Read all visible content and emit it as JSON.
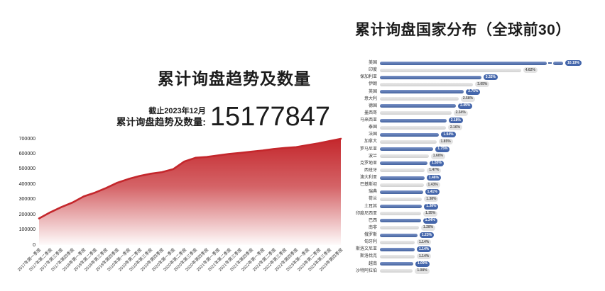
{
  "left_chart": {
    "title": "累计询盘趋势及数量",
    "as_of_label": "截止2023年12月",
    "total_label": "累计询盘趋势及数量:",
    "total_value": "15177847"
  },
  "right_chart": {
    "title": "累计询盘国家分布（全球前30）"
  },
  "colors": {
    "area_red": "#c4272c",
    "bar_blue": "#4a6bb0",
    "bar_gray": "#d9d9d9",
    "badge_blue_bg": "#4466ab",
    "badge_gray_bg": "#e3e3e3",
    "text_dark": "#1c1c1c"
  },
  "chart_data": [
    {
      "type": "area",
      "title": "累计询盘趋势及数量",
      "x": [
        "2017年第一季度",
        "2017年第二季度",
        "2017年第三季度",
        "2017年第四季度",
        "2018年第一季度",
        "2018年第二季度",
        "2018年第三季度",
        "2018年第四季度",
        "2019年第一季度",
        "2019年第二季度",
        "2019年第三季度",
        "2019年第四季度",
        "2020年第一季度",
        "2020年第二季度",
        "2020年第三季度",
        "2020年第四季度",
        "2021年第一季度",
        "2021年第二季度",
        "2021年第三季度",
        "2021年第四季度",
        "2022年第一季度",
        "2022年第二季度",
        "2022年第三季度",
        "2022年第四季度",
        "2023年第一季度",
        "2023年第二季度",
        "2023年第三季度",
        "2023年第四季度"
      ],
      "values": [
        175000,
        215000,
        250000,
        280000,
        320000,
        345000,
        375000,
        410000,
        435000,
        455000,
        470000,
        480000,
        500000,
        550000,
        575000,
        580000,
        590000,
        600000,
        607000,
        615000,
        623000,
        633000,
        640000,
        645000,
        658000,
        670000,
        685000,
        700000
      ],
      "xlabel": "",
      "ylabel": "",
      "ylim": [
        0,
        700000
      ],
      "yticks": [
        0,
        100000,
        200000,
        300000,
        400000,
        500000,
        600000,
        700000
      ],
      "grid": false,
      "legend": false
    },
    {
      "type": "bar",
      "orientation": "horizontal",
      "title": "累计询盘国家分布（全球前30）",
      "unit": "%",
      "first_bar_axis_break": true,
      "color_alternation": [
        "blue",
        "gray"
      ],
      "categories": [
        "美国",
        "印度",
        "保加利亚",
        "伊朗",
        "英国",
        "意大利",
        "德国",
        "墨西哥",
        "马来西亚",
        "泰国",
        "法国",
        "加拿大",
        "罗马尼亚",
        "波兰",
        "克罗地亚",
        "西班牙",
        "澳大利亚",
        "巴基斯坦",
        "瑞典",
        "荷兰",
        "土耳其",
        "印度尼西亚",
        "巴西",
        "南非",
        "俄罗斯",
        "匈牙利",
        "斯洛文尼亚",
        "斯洛伐克",
        "越南",
        "沙特阿拉伯"
      ],
      "values": [
        10.19,
        4.62,
        3.32,
        3.05,
        2.75,
        2.58,
        2.49,
        2.34,
        2.18,
        2.16,
        1.94,
        1.85,
        1.75,
        1.6,
        1.55,
        1.47,
        1.46,
        1.43,
        1.41,
        1.38,
        1.38,
        1.35,
        1.34,
        1.28,
        1.23,
        1.14,
        1.14,
        1.14,
        1.09,
        1.08
      ]
    }
  ]
}
